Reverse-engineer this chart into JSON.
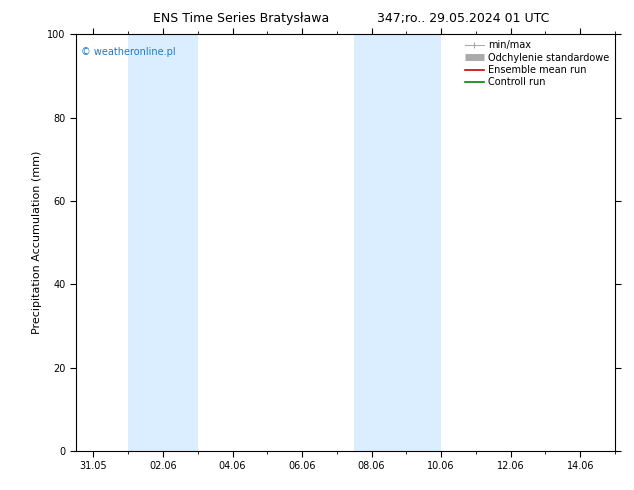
{
  "title_left": "ENS Time Series Bratysława",
  "title_right": "347;ro.. 29.05.2024 01 UTC",
  "ylabel": "Precipitation Accumulation (mm)",
  "watermark": "© weatheronline.pl",
  "ylim": [
    0,
    100
  ],
  "yticks": [
    0,
    20,
    40,
    60,
    80,
    100
  ],
  "xtick_labels": [
    "31.05",
    "02.06",
    "04.06",
    "06.06",
    "08.06",
    "10.06",
    "12.06",
    "14.06"
  ],
  "xtick_positions": [
    0,
    2,
    4,
    6,
    8,
    10,
    12,
    14
  ],
  "xmin": -0.5,
  "xmax": 15.0,
  "shaded_bands": [
    {
      "xmin": 1.0,
      "xmax": 3.0
    },
    {
      "xmin": 7.5,
      "xmax": 10.0
    }
  ],
  "band_color": "#daeeff",
  "legend_labels": [
    "min/max",
    "Odchylenie standardowe",
    "Ensemble mean run",
    "Controll run"
  ],
  "legend_colors_line": [
    "#aaaaaa",
    "#cccccc",
    "#cc0000",
    "#008800"
  ],
  "background_color": "#ffffff",
  "watermark_color": "#1a7acc",
  "title_fontsize": 9,
  "tick_fontsize": 7,
  "ylabel_fontsize": 8,
  "legend_fontsize": 7
}
